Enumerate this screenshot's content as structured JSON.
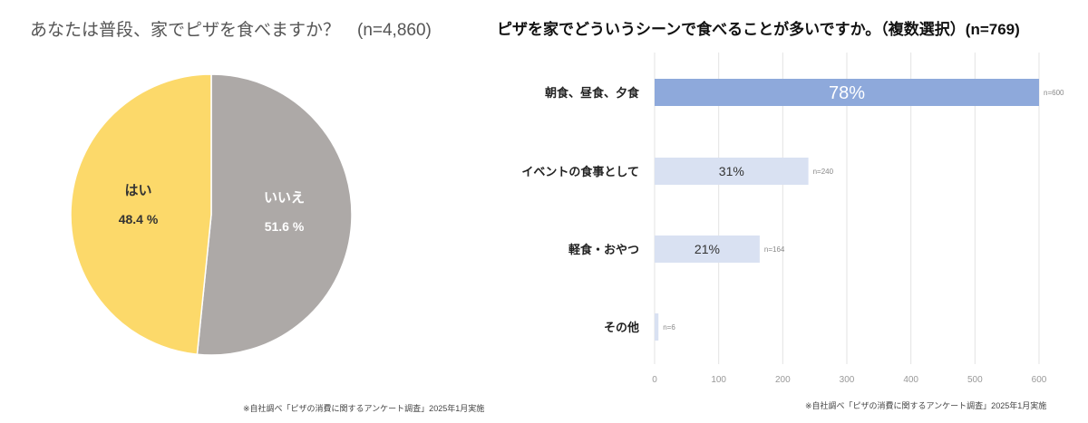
{
  "chart_data": [
    {
      "type": "pie",
      "title": "あなたは普段、家でピザを食べますか？　(n=4,860)",
      "slices": [
        {
          "label": "いいえ",
          "value": 51.6,
          "value_label": "51.6 %",
          "color": "#ADA9A7"
        },
        {
          "label": "はい",
          "value": 48.4,
          "value_label": "48.4 %",
          "color": "#FCD96A"
        }
      ],
      "footnote": "※自社調べ「ピザの消費に関するアンケート調査」2025年1月実施"
    },
    {
      "type": "bar",
      "orientation": "horizontal",
      "title": "ピザを家でどういうシーンで食べることが多いですか。（複数選択）(n=769)",
      "categories": [
        "朝食、昼食、夕食",
        "イベントの食事として",
        "軽食・おやつ",
        "その他"
      ],
      "values": [
        600,
        240,
        164,
        6
      ],
      "n_labels": [
        "n=600",
        "n=240",
        "n=164",
        "n=6"
      ],
      "percent_labels": [
        "78%",
        "31%",
        "21%",
        ""
      ],
      "colors": [
        "#8EA9DB",
        "#D9E1F2",
        "#D9E1F2",
        "#D9E1F2"
      ],
      "xlim": [
        0,
        600
      ],
      "xticks": [
        "0",
        "100",
        "200",
        "300",
        "400",
        "500",
        "600"
      ],
      "grid": true,
      "footnote": "※自社調べ「ピザの消費に関するアンケート調査」2025年1月実施"
    }
  ]
}
